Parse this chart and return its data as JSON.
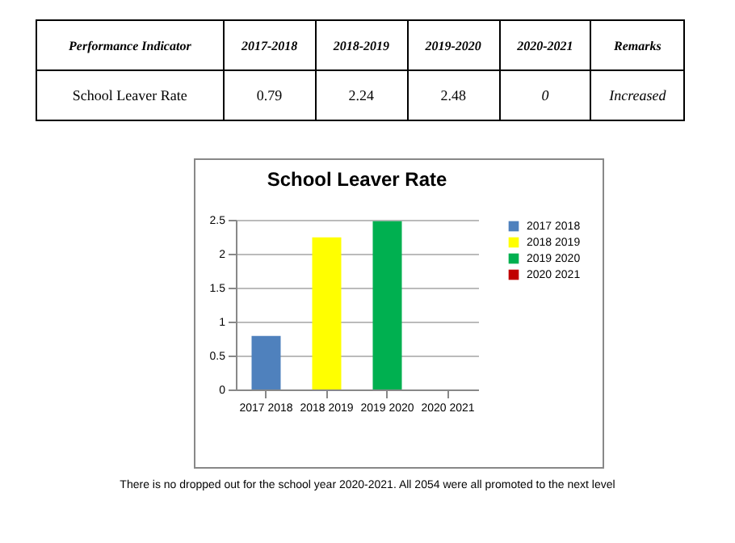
{
  "chart_data": {
    "type": "bar",
    "title": "School Leaver Rate",
    "categories": [
      "2017 2018",
      "2018 2019",
      "2019 2020",
      "2020 2021"
    ],
    "series": [
      {
        "name": "2017 2018",
        "color": "#4f81bd",
        "values": [
          0.79,
          null,
          null,
          null
        ]
      },
      {
        "name": "2018 2019",
        "color": "#ffff00",
        "values": [
          null,
          2.24,
          null,
          null
        ]
      },
      {
        "name": "2019 2020",
        "color": "#00b050",
        "values": [
          null,
          null,
          2.48,
          null
        ]
      },
      {
        "name": "2020 2021",
        "color": "#c00000",
        "values": [
          null,
          null,
          null,
          0
        ]
      }
    ],
    "ylim": [
      0,
      2.5
    ],
    "yticks": [
      0,
      0.5,
      1,
      1.5,
      2,
      2.5
    ],
    "grid": "y",
    "legend": "right",
    "annotations": [
      "Performance Indicator",
      "2017-2018",
      "2018-2019",
      "2019-2020",
      "2020-2021",
      "Remarks",
      "School Leaver Rate",
      "0.79",
      "2.24",
      "2.48",
      "0",
      "Increased",
      "There is no dropped out for the school year 2020-2021. All 2054 were all promoted to the next level"
    ]
  }
}
